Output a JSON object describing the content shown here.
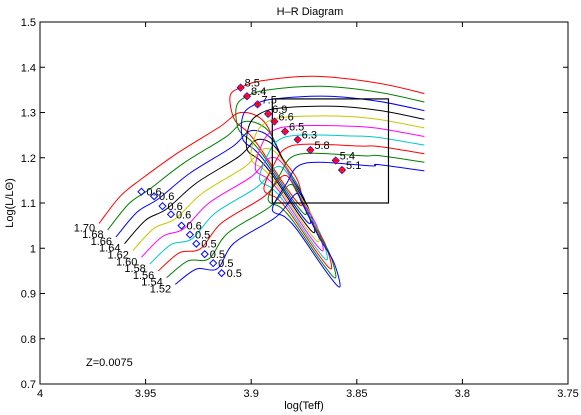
{
  "chart_data": {
    "type": "line",
    "title": "H–R Diagram",
    "xlabel": "log(Teff)",
    "ylabel": "Log(L/LΘ)",
    "xlim": [
      4.0,
      3.75
    ],
    "ylim": [
      0.7,
      1.5
    ],
    "x_reversed": true,
    "grid": false,
    "xticks": [
      4,
      3.95,
      3.9,
      3.85,
      3.8,
      3.75
    ],
    "xtick_labels": [
      "4",
      "3.95",
      "3.9",
      "3.85",
      "3.8",
      "3.75"
    ],
    "yticks": [
      0.7,
      0.8,
      0.9,
      1.0,
      1.1,
      1.2,
      1.3,
      1.4,
      1.5
    ],
    "ytick_labels": [
      "0.7",
      "0.8",
      "0.9",
      "1",
      "1.1",
      "1.2",
      "1.3",
      "1.4",
      "1.5"
    ],
    "annotation": "Z=0.0075",
    "box": {
      "x": [
        3.89,
        3.835
      ],
      "y": [
        1.1,
        1.33
      ],
      "color": "#000000"
    },
    "series": [
      {
        "mass": "1.70",
        "color": "#ff0000",
        "points": [
          [
            3.972,
            1.055
          ],
          [
            3.962,
            1.115
          ],
          [
            3.952,
            1.153
          ],
          [
            3.935,
            1.21
          ],
          [
            3.915,
            1.268
          ],
          [
            3.905,
            1.3
          ],
          [
            3.894,
            1.28
          ],
          [
            3.886,
            1.205
          ],
          [
            3.878,
            1.15
          ],
          [
            3.876,
            1.095
          ],
          [
            3.882,
            1.125
          ],
          [
            3.896,
            1.223
          ],
          [
            3.902,
            1.258
          ],
          [
            3.908,
            1.285
          ],
          [
            3.91,
            1.336
          ],
          [
            3.905,
            1.355
          ],
          [
            3.895,
            1.37
          ],
          [
            3.87,
            1.38
          ],
          [
            3.84,
            1.365
          ],
          [
            3.818,
            1.342
          ]
        ]
      },
      {
        "mass": "1.68",
        "color": "#008000",
        "points": [
          [
            3.968,
            1.04
          ],
          [
            3.958,
            1.098
          ],
          [
            3.948,
            1.131
          ],
          [
            3.932,
            1.188
          ],
          [
            3.912,
            1.246
          ],
          [
            3.903,
            1.28
          ],
          [
            3.892,
            1.26
          ],
          [
            3.884,
            1.185
          ],
          [
            3.877,
            1.13
          ],
          [
            3.874,
            1.075
          ],
          [
            3.88,
            1.105
          ],
          [
            3.894,
            1.203
          ],
          [
            3.9,
            1.237
          ],
          [
            3.906,
            1.263
          ],
          [
            3.907,
            1.313
          ],
          [
            3.902,
            1.336
          ],
          [
            3.892,
            1.35
          ],
          [
            3.867,
            1.358
          ],
          [
            3.84,
            1.345
          ],
          [
            3.818,
            1.323
          ]
        ]
      },
      {
        "mass": "1.66",
        "color": "#0000ff",
        "points": [
          [
            3.964,
            1.025
          ],
          [
            3.954,
            1.08
          ],
          [
            3.944,
            1.109
          ],
          [
            3.929,
            1.166
          ],
          [
            3.909,
            1.224
          ],
          [
            3.9,
            1.26
          ],
          [
            3.89,
            1.24
          ],
          [
            3.882,
            1.165
          ],
          [
            3.875,
            1.11
          ],
          [
            3.872,
            1.055
          ],
          [
            3.878,
            1.085
          ],
          [
            3.892,
            1.182
          ],
          [
            3.898,
            1.216
          ],
          [
            3.904,
            1.241
          ],
          [
            3.904,
            1.292
          ],
          [
            3.899,
            1.316
          ],
          [
            3.889,
            1.33
          ],
          [
            3.864,
            1.336
          ],
          [
            3.84,
            1.325
          ],
          [
            3.818,
            1.304
          ]
        ]
      },
      {
        "mass": "1.64",
        "color": "#000000",
        "points": [
          [
            3.96,
            1.01
          ],
          [
            3.95,
            1.062
          ],
          [
            3.94,
            1.087
          ],
          [
            3.926,
            1.144
          ],
          [
            3.906,
            1.202
          ],
          [
            3.897,
            1.24
          ],
          [
            3.888,
            1.22
          ],
          [
            3.88,
            1.145
          ],
          [
            3.873,
            1.09
          ],
          [
            3.87,
            1.035
          ],
          [
            3.876,
            1.065
          ],
          [
            3.89,
            1.162
          ],
          [
            3.896,
            1.195
          ],
          [
            3.902,
            1.219
          ],
          [
            3.901,
            1.271
          ],
          [
            3.896,
            1.297
          ],
          [
            3.886,
            1.31
          ],
          [
            3.861,
            1.314
          ],
          [
            3.84,
            1.305
          ],
          [
            3.818,
            1.285
          ]
        ]
      },
      {
        "mass": "1.62",
        "color": "#c8c800",
        "points": [
          [
            3.956,
            0.995
          ],
          [
            3.946,
            1.044
          ],
          [
            3.936,
            1.065
          ],
          [
            3.923,
            1.122
          ],
          [
            3.903,
            1.18
          ],
          [
            3.894,
            1.22
          ],
          [
            3.886,
            1.2
          ],
          [
            3.878,
            1.125
          ],
          [
            3.871,
            1.07
          ],
          [
            3.868,
            1.015
          ],
          [
            3.874,
            1.045
          ],
          [
            3.888,
            1.141
          ],
          [
            3.894,
            1.174
          ],
          [
            3.9,
            1.197
          ],
          [
            3.898,
            1.25
          ],
          [
            3.893,
            1.278
          ],
          [
            3.883,
            1.29
          ],
          [
            3.858,
            1.292
          ],
          [
            3.84,
            1.285
          ],
          [
            3.818,
            1.266
          ]
        ]
      },
      {
        "mass": "1.60",
        "color": "#ff00ff",
        "points": [
          [
            3.952,
            0.98
          ],
          [
            3.942,
            1.026
          ],
          [
            3.932,
            1.043
          ],
          [
            3.92,
            1.1
          ],
          [
            3.9,
            1.158
          ],
          [
            3.891,
            1.2
          ],
          [
            3.884,
            1.18
          ],
          [
            3.876,
            1.105
          ],
          [
            3.869,
            1.05
          ],
          [
            3.866,
            0.995
          ],
          [
            3.872,
            1.025
          ],
          [
            3.886,
            1.121
          ],
          [
            3.892,
            1.153
          ],
          [
            3.898,
            1.175
          ],
          [
            3.895,
            1.229
          ],
          [
            3.89,
            1.259
          ],
          [
            3.88,
            1.27
          ],
          [
            3.855,
            1.27
          ],
          [
            3.84,
            1.265
          ],
          [
            3.818,
            1.247
          ]
        ]
      },
      {
        "mass": "1.58",
        "color": "#00c8c8",
        "points": [
          [
            3.948,
            0.965
          ],
          [
            3.938,
            1.008
          ],
          [
            3.928,
            1.021
          ],
          [
            3.917,
            1.078
          ],
          [
            3.897,
            1.136
          ],
          [
            3.888,
            1.18
          ],
          [
            3.882,
            1.16
          ],
          [
            3.874,
            1.085
          ],
          [
            3.867,
            1.03
          ],
          [
            3.864,
            0.975
          ],
          [
            3.87,
            1.005
          ],
          [
            3.884,
            1.1
          ],
          [
            3.89,
            1.132
          ],
          [
            3.896,
            1.153
          ],
          [
            3.892,
            1.208
          ],
          [
            3.887,
            1.239
          ],
          [
            3.877,
            1.25
          ],
          [
            3.852,
            1.248
          ],
          [
            3.84,
            1.245
          ],
          [
            3.818,
            1.228
          ]
        ]
      },
      {
        "mass": "1.56",
        "color": "#ff0000",
        "points": [
          [
            3.944,
            0.95
          ],
          [
            3.934,
            0.99
          ],
          [
            3.924,
            0.999
          ],
          [
            3.914,
            1.056
          ],
          [
            3.894,
            1.114
          ],
          [
            3.885,
            1.16
          ],
          [
            3.88,
            1.14
          ],
          [
            3.872,
            1.065
          ],
          [
            3.865,
            1.01
          ],
          [
            3.862,
            0.955
          ],
          [
            3.868,
            0.985
          ],
          [
            3.882,
            1.08
          ],
          [
            3.888,
            1.111
          ],
          [
            3.894,
            1.131
          ],
          [
            3.889,
            1.187
          ],
          [
            3.884,
            1.22
          ],
          [
            3.874,
            1.23
          ],
          [
            3.849,
            1.226
          ],
          [
            3.84,
            1.225
          ],
          [
            3.818,
            1.209
          ]
        ]
      },
      {
        "mass": "1.54",
        "color": "#008000",
        "points": [
          [
            3.94,
            0.935
          ],
          [
            3.93,
            0.972
          ],
          [
            3.92,
            0.977
          ],
          [
            3.911,
            1.034
          ],
          [
            3.891,
            1.092
          ],
          [
            3.882,
            1.14
          ],
          [
            3.878,
            1.12
          ],
          [
            3.87,
            1.045
          ],
          [
            3.863,
            0.99
          ],
          [
            3.86,
            0.935
          ],
          [
            3.866,
            0.965
          ],
          [
            3.88,
            1.059
          ],
          [
            3.886,
            1.09
          ],
          [
            3.892,
            1.109
          ],
          [
            3.886,
            1.166
          ],
          [
            3.881,
            1.201
          ],
          [
            3.871,
            1.21
          ],
          [
            3.846,
            1.204
          ],
          [
            3.84,
            1.205
          ],
          [
            3.818,
            1.19
          ]
        ]
      },
      {
        "mass": "1.52",
        "color": "#0000ff",
        "points": [
          [
            3.936,
            0.92
          ],
          [
            3.926,
            0.954
          ],
          [
            3.916,
            0.955
          ],
          [
            3.908,
            1.012
          ],
          [
            3.888,
            1.07
          ],
          [
            3.879,
            1.12
          ],
          [
            3.876,
            1.1
          ],
          [
            3.868,
            1.025
          ],
          [
            3.861,
            0.97
          ],
          [
            3.858,
            0.915
          ],
          [
            3.864,
            0.945
          ],
          [
            3.878,
            1.039
          ],
          [
            3.884,
            1.069
          ],
          [
            3.89,
            1.087
          ],
          [
            3.883,
            1.145
          ],
          [
            3.878,
            1.181
          ],
          [
            3.868,
            1.19
          ],
          [
            3.843,
            1.182
          ],
          [
            3.84,
            1.185
          ],
          [
            3.818,
            1.171
          ]
        ]
      }
    ],
    "start_markers": [
      {
        "x": 3.952,
        "y": 1.125,
        "label": "0.6"
      },
      {
        "x": 3.946,
        "y": 1.115,
        "label": "0.6"
      },
      {
        "x": 3.942,
        "y": 1.093,
        "label": "0.6"
      },
      {
        "x": 3.938,
        "y": 1.075,
        "label": "0.6"
      },
      {
        "x": 3.933,
        "y": 1.05,
        "label": "0.6"
      },
      {
        "x": 3.929,
        "y": 1.03,
        "label": "0.5"
      },
      {
        "x": 3.926,
        "y": 1.01,
        "label": "0.5"
      },
      {
        "x": 3.922,
        "y": 0.987,
        "label": "0.5"
      },
      {
        "x": 3.918,
        "y": 0.967,
        "label": "0.5"
      },
      {
        "x": 3.914,
        "y": 0.945,
        "label": "0.5"
      }
    ],
    "end_markers": [
      {
        "x": 3.905,
        "y": 1.355,
        "label": "8.5"
      },
      {
        "x": 3.902,
        "y": 1.336,
        "label": "8.4"
      },
      {
        "x": 3.897,
        "y": 1.318,
        "label": "7.5"
      },
      {
        "x": 3.892,
        "y": 1.297,
        "label": "6.9"
      },
      {
        "x": 3.889,
        "y": 1.28,
        "label": "6.6"
      },
      {
        "x": 3.884,
        "y": 1.258,
        "label": "6.5"
      },
      {
        "x": 3.878,
        "y": 1.24,
        "label": "6.3"
      },
      {
        "x": 3.872,
        "y": 1.217,
        "label": "5.8"
      },
      {
        "x": 3.86,
        "y": 1.194,
        "label": "5.4"
      },
      {
        "x": 3.857,
        "y": 1.173,
        "label": "5.1"
      }
    ],
    "mass_labels": [
      "1.70",
      "1.68",
      "1.66",
      "1.64",
      "1.62",
      "1.60",
      "1.58",
      "1.56",
      "1.54",
      "1.52"
    ]
  }
}
